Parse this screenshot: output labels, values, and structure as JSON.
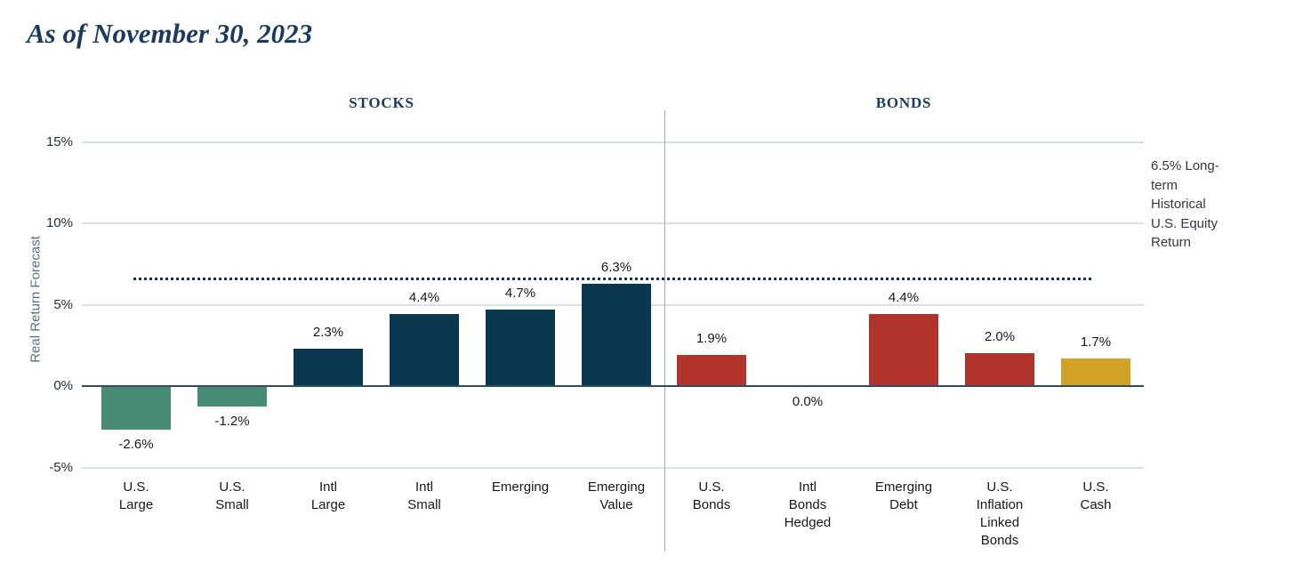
{
  "title": "As of November 30, 2023",
  "colors": {
    "navy": "#093850",
    "green": "#488c76",
    "red": "#b2332a",
    "gold": "#d2a227",
    "header_text": "#1c3c60",
    "grid": "#d7e3e9",
    "zero_line": "#2e4d62",
    "reference_line": "#14304a",
    "separator": "#a6a9ab"
  },
  "chart_data": {
    "type": "bar",
    "title": "As of November 30, 2023",
    "ylabel": "Real Return Forecast",
    "ylim": [
      -5,
      15
    ],
    "grid": true,
    "yticks": [
      {
        "label": "15%",
        "value": 15
      },
      {
        "label": "10%",
        "value": 10
      },
      {
        "label": "5%",
        "value": 5
      },
      {
        "label": "0%",
        "value": 0
      },
      {
        "label": "-5%",
        "value": -5
      }
    ],
    "reference_line": {
      "value": 6.5,
      "style": "dotted",
      "label": "6.5% Long-term Historical U.S. Equity Return",
      "label_lines": [
        "6.5% Long-",
        "term",
        "Historical",
        "U.S. Equity",
        "Return"
      ]
    },
    "groups": [
      {
        "name": "STOCKS",
        "bars": [
          {
            "category": "U.S. Large",
            "label_lines": [
              "U.S.",
              "Large"
            ],
            "value": -2.6,
            "value_label": "-2.6%",
            "color": "green"
          },
          {
            "category": "U.S. Small",
            "label_lines": [
              "U.S.",
              "Small"
            ],
            "value": -1.2,
            "value_label": "-1.2%",
            "color": "green"
          },
          {
            "category": "Intl Large",
            "label_lines": [
              "Intl",
              "Large"
            ],
            "value": 2.3,
            "value_label": "2.3%",
            "color": "navy"
          },
          {
            "category": "Intl Small",
            "label_lines": [
              "Intl",
              "Small"
            ],
            "value": 4.4,
            "value_label": "4.4%",
            "color": "navy"
          },
          {
            "category": "Emerging",
            "label_lines": [
              "Emerging"
            ],
            "value": 4.7,
            "value_label": "4.7%",
            "color": "navy"
          },
          {
            "category": "Emerging Value",
            "label_lines": [
              "Emerging",
              "Value"
            ],
            "value": 6.3,
            "value_label": "6.3%",
            "color": "navy"
          }
        ]
      },
      {
        "name": "BONDS",
        "bars": [
          {
            "category": "U.S. Bonds",
            "label_lines": [
              "U.S.",
              "Bonds"
            ],
            "value": 1.9,
            "value_label": "1.9%",
            "color": "red"
          },
          {
            "category": "Intl Bonds Hedged",
            "label_lines": [
              "Intl",
              "Bonds",
              "Hedged"
            ],
            "value": 0.0,
            "value_label": "0.0%",
            "color": "red"
          },
          {
            "category": "Emerging Debt",
            "label_lines": [
              "Emerging",
              "Debt"
            ],
            "value": 4.4,
            "value_label": "4.4%",
            "color": "red"
          },
          {
            "category": "U.S. Inflation Linked Bonds",
            "label_lines": [
              "U.S.",
              "Inflation",
              "Linked",
              "Bonds"
            ],
            "value": 2.0,
            "value_label": "2.0%",
            "color": "red"
          },
          {
            "category": "U.S. Cash",
            "label_lines": [
              "U.S.",
              "Cash"
            ],
            "value": 1.7,
            "value_label": "1.7%",
            "color": "gold"
          }
        ]
      }
    ]
  }
}
